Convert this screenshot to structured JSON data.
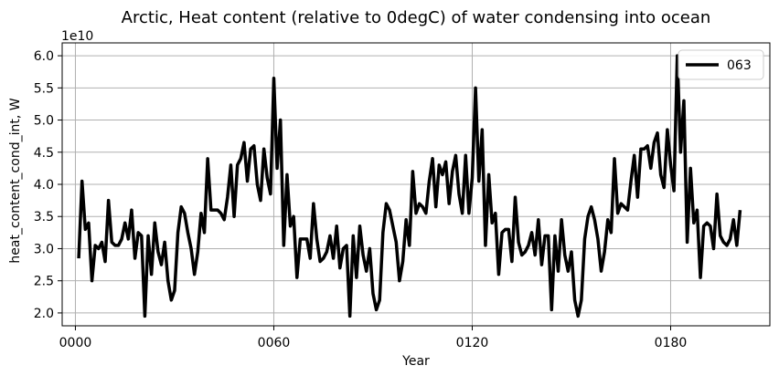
{
  "chart_data": {
    "type": "line",
    "title": "Arctic, Heat content (relative to 0degC) of water condensing into ocean",
    "xlabel": "Year",
    "ylabel": "heat_content_cond_int, W",
    "y_offset_label": "1e10",
    "y_scale": 10000000000.0,
    "xlim": [
      -4,
      210
    ],
    "ylim": [
      1.8,
      6.2
    ],
    "grid": true,
    "legend_position": "top-right",
    "x_ticks": [
      0,
      60,
      120,
      180
    ],
    "x_tick_labels": [
      "0000",
      "0060",
      "0120",
      "0180"
    ],
    "y_ticks": [
      2.0,
      2.5,
      3.0,
      3.5,
      4.0,
      4.5,
      5.0,
      5.5,
      6.0
    ],
    "y_tick_labels": [
      "2.0",
      "2.5",
      "3.0",
      "3.5",
      "4.0",
      "4.5",
      "5.0",
      "5.5",
      "6.0"
    ],
    "series": [
      {
        "name": "063",
        "color": "#000000",
        "x_start": 1,
        "x_step": 1,
        "values": [
          2.85,
          4.05,
          3.3,
          3.4,
          2.5,
          3.05,
          3.0,
          3.1,
          2.8,
          3.75,
          3.1,
          3.05,
          3.05,
          3.15,
          3.4,
          3.15,
          3.6,
          2.85,
          3.25,
          3.2,
          1.95,
          3.2,
          2.6,
          3.4,
          2.95,
          2.75,
          3.1,
          2.5,
          2.2,
          2.35,
          3.25,
          3.65,
          3.55,
          3.25,
          3.0,
          2.6,
          2.95,
          3.55,
          3.25,
          4.4,
          3.6,
          3.6,
          3.6,
          3.55,
          3.45,
          3.8,
          4.3,
          3.5,
          4.3,
          4.4,
          4.65,
          4.05,
          4.55,
          4.6,
          4.0,
          3.75,
          4.55,
          4.1,
          3.85,
          5.65,
          4.25,
          5.0,
          3.05,
          4.15,
          3.35,
          3.5,
          2.55,
          3.15,
          3.15,
          3.15,
          2.85,
          3.7,
          3.15,
          2.8,
          2.85,
          2.95,
          3.2,
          2.85,
          3.35,
          2.7,
          3.0,
          3.05,
          1.95,
          3.2,
          2.55,
          3.35,
          2.9,
          2.65,
          3.0,
          2.3,
          2.05,
          2.2,
          3.25,
          3.7,
          3.6,
          3.35,
          3.1,
          2.5,
          2.8,
          3.45,
          3.05,
          4.2,
          3.55,
          3.7,
          3.65,
          3.55,
          4.05,
          4.4,
          3.65,
          4.3,
          4.15,
          4.35,
          3.7,
          4.2,
          4.45,
          3.85,
          3.55,
          4.45,
          3.55,
          4.1,
          5.5,
          4.05,
          4.85,
          3.05,
          4.15,
          3.4,
          3.55,
          2.6,
          3.25,
          3.3,
          3.3,
          2.8,
          3.8,
          3.1,
          2.9,
          2.95,
          3.05,
          3.25,
          2.9,
          3.45,
          2.75,
          3.2,
          3.2,
          2.05,
          3.2,
          2.65,
          3.45,
          2.9,
          2.65,
          2.95,
          2.2,
          1.95,
          2.2,
          3.15,
          3.5,
          3.65,
          3.45,
          3.15,
          2.65,
          2.95,
          3.45,
          3.25,
          4.4,
          3.55,
          3.7,
          3.65,
          3.6,
          4.05,
          4.45,
          3.8,
          4.55,
          4.55,
          4.6,
          4.25,
          4.65,
          4.8,
          4.15,
          3.95,
          4.85,
          4.3,
          3.9,
          6.0,
          4.5,
          5.3,
          3.1,
          4.25,
          3.4,
          3.6,
          2.55,
          3.35,
          3.4,
          3.35,
          3.0,
          3.85,
          3.2,
          3.1,
          3.05,
          3.15,
          3.45,
          3.05,
          3.6
        ]
      }
    ]
  }
}
